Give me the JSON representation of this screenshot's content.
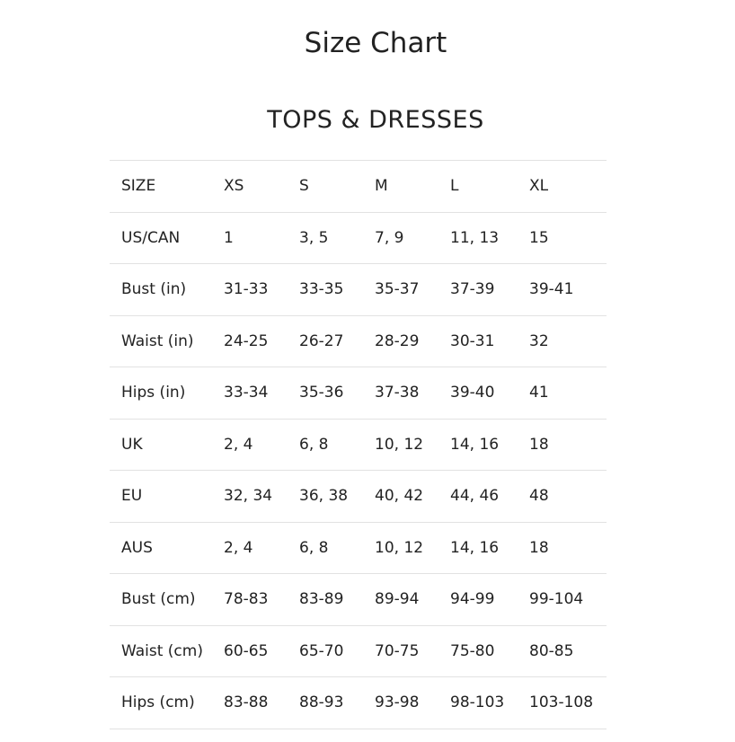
{
  "title": "Size Chart",
  "section_title": "TOPS & DRESSES",
  "table": {
    "header": [
      "SIZE",
      "XS",
      "S",
      "M",
      "L",
      "XL"
    ],
    "rows": [
      [
        "US/CAN",
        "1",
        "3, 5",
        "7, 9",
        "11, 13",
        "15"
      ],
      [
        "Bust (in)",
        "31-33",
        "33-35",
        "35-37",
        "37-39",
        "39-41"
      ],
      [
        "Waist (in)",
        "24-25",
        "26-27",
        "28-29",
        "30-31",
        "32"
      ],
      [
        "Hips (in)",
        "33-34",
        "35-36",
        "37-38",
        "39-40",
        "41"
      ],
      [
        "UK",
        "2, 4",
        "6, 8",
        "10, 12",
        "14, 16",
        "18"
      ],
      [
        "EU",
        "32, 34",
        "36, 38",
        "40, 42",
        "44, 46",
        "48"
      ],
      [
        "AUS",
        "2, 4",
        "6, 8",
        "10, 12",
        "14, 16",
        "18"
      ],
      [
        "Bust (cm)",
        "78-83",
        "83-89",
        "89-94",
        "94-99",
        "99-104"
      ],
      [
        "Waist (cm)",
        "60-65",
        "65-70",
        "70-75",
        "75-80",
        "80-85"
      ],
      [
        "Hips (cm)",
        "83-88",
        "88-93",
        "93-98",
        "98-103",
        "103-108"
      ]
    ]
  }
}
